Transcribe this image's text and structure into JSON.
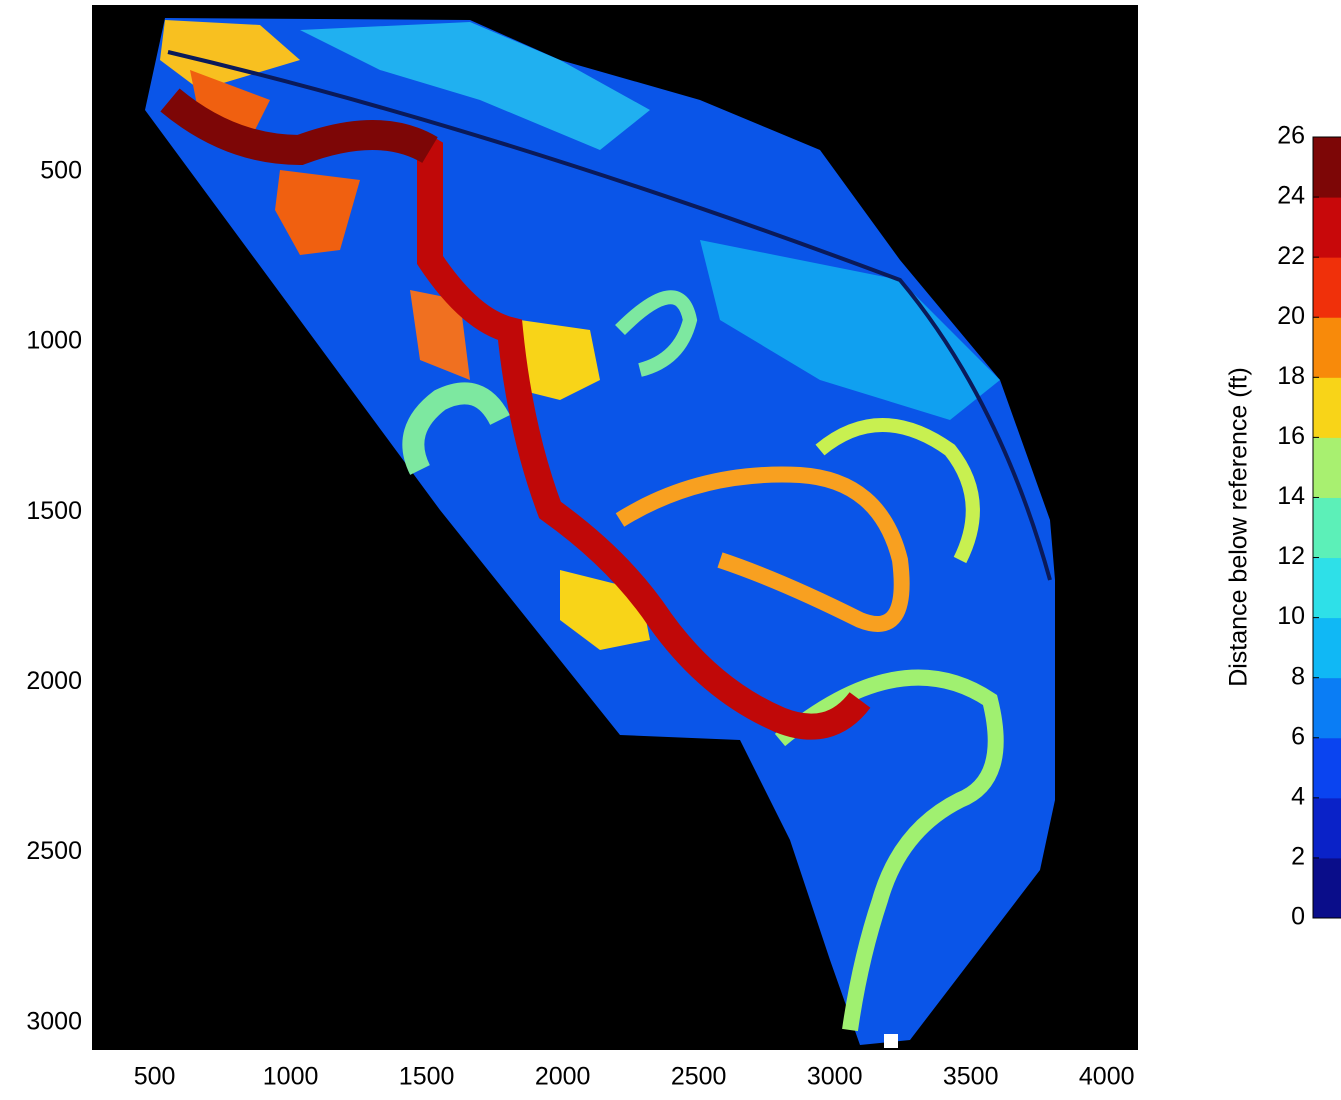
{
  "chart_data": {
    "type": "image",
    "xlim": [
      270,
      4115
    ],
    "xticks": [
      500,
      1000,
      1500,
      2000,
      2500,
      3000,
      3500,
      4000
    ],
    "ylim": [
      10,
      3080
    ],
    "yticks": [
      500,
      1000,
      1500,
      2000,
      2500,
      3000
    ],
    "y_reversed": true,
    "colorbar": {
      "label": "Distance below reference (ft)",
      "clim": [
        0,
        26
      ],
      "ticks": [
        0,
        2,
        4,
        6,
        8,
        10,
        12,
        14,
        16,
        18,
        20,
        22,
        24,
        26
      ],
      "colors": [
        "#0a0d8a",
        "#0a22c8",
        "#0a44f0",
        "#0a7df5",
        "#10b8f5",
        "#2ee0e8",
        "#5cf0b8",
        "#a8f070",
        "#f8d418",
        "#f88a0a",
        "#f0300a",
        "#c8080a",
        "#7d0606"
      ]
    }
  }
}
